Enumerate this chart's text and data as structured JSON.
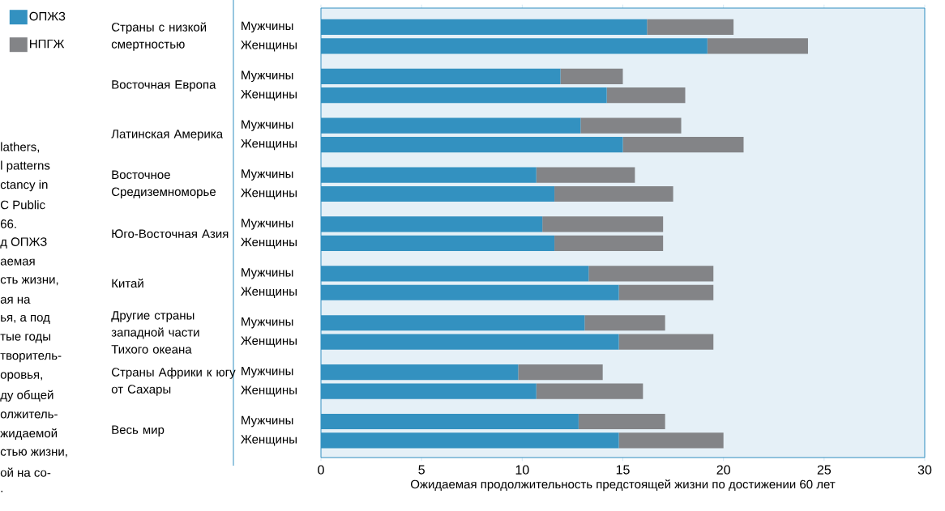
{
  "chart_data": {
    "type": "bar",
    "orientation": "horizontal",
    "stacked": true,
    "xlabel": "Ожидаемая продолжительность предстоящей жизни по достижении 60 лет",
    "categories": [
      "Мужчины",
      "Женщины",
      "Мужчины",
      "Женщины",
      "Мужчины",
      "Женщины",
      "Мужчины",
      "Женщины",
      "Мужчины",
      "Женщины",
      "Мужчины",
      "Женщины",
      "Мужчины",
      "Женщины",
      "Мужчины",
      "Женщины",
      "Мужчины",
      "Женщины"
    ],
    "series": [
      {
        "name": "ОПЖЗ",
        "color": "#3391c0",
        "values": [
          16.2,
          19.2,
          11.9,
          14.2,
          12.9,
          15.0,
          10.7,
          11.6,
          11.0,
          11.6,
          13.3,
          14.8,
          13.1,
          14.8,
          9.8,
          10.7,
          12.8,
          14.8
        ]
      },
      {
        "name": "НПГЖ",
        "color": "#838487",
        "values": [
          4.3,
          5.0,
          3.1,
          3.9,
          5.0,
          6.0,
          4.9,
          5.9,
          6.0,
          5.4,
          6.2,
          4.7,
          4.0,
          4.7,
          4.2,
          5.3,
          4.3,
          5.2
        ]
      }
    ],
    "xlim": [
      0,
      30
    ],
    "xticks": [
      0,
      5,
      10,
      15,
      20,
      25,
      30
    ],
    "legend": "top left",
    "annotations": [
      "Страны с низкой смертностью",
      "Восточная Европа",
      "Латинская Америка",
      "Восточное Средиземноморье",
      "Юго-Восточная Азия",
      "Китай",
      "Другие страны западной части Тихого океана",
      "Страны Африки к югу от Сахары",
      "Весь мир",
      "lathers,",
      "l patterns",
      "ctancy in",
      "C Public",
      "66.",
      "д ОПЖЗ",
      "аемая",
      "сть жизни,",
      "ая на",
      "ья, а под",
      "тые годы",
      "творитель-",
      "оровья,",
      "ду общей",
      "олжитель-",
      "жидаемой",
      "стью жизни,",
      "ой на со-",
      "."
    ]
  }
}
